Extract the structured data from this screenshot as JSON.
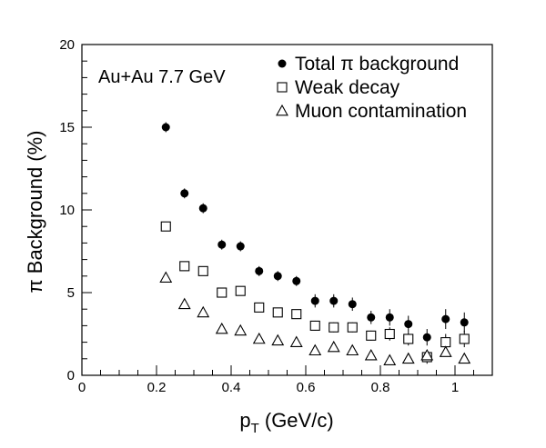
{
  "chart_data": {
    "type": "scatter",
    "annotation": "Au+Au 7.7 GeV",
    "xlabel": {
      "main": "p",
      "sub": "T",
      "rest": " (GeV/c)"
    },
    "ylabel": "π Background (%)",
    "xlim": [
      0,
      1.1
    ],
    "ylim": [
      0,
      20
    ],
    "x_ticks": [
      0,
      0.2,
      0.4,
      0.6,
      0.8,
      1
    ],
    "x_tick_labels": [
      "0",
      "0.2",
      "0.4",
      "0.6",
      "0.8",
      "1"
    ],
    "y_ticks": [
      0,
      5,
      10,
      15,
      20
    ],
    "y_tick_labels": [
      "0",
      "5",
      "10",
      "15",
      "20"
    ],
    "grid": false,
    "legend_position": "top-right",
    "series": [
      {
        "name": "Total π background",
        "marker": "filled-circle",
        "color": "#000000",
        "x": [
          0.225,
          0.275,
          0.325,
          0.375,
          0.425,
          0.475,
          0.525,
          0.575,
          0.625,
          0.675,
          0.725,
          0.775,
          0.825,
          0.875,
          0.925,
          0.975,
          1.025
        ],
        "y": [
          15.0,
          11.0,
          10.1,
          7.9,
          7.8,
          6.3,
          6.0,
          5.7,
          4.5,
          4.5,
          4.3,
          3.5,
          3.5,
          3.1,
          2.3,
          3.4,
          3.2
        ],
        "err": [
          0.3,
          0.3,
          0.3,
          0.3,
          0.3,
          0.3,
          0.3,
          0.3,
          0.4,
          0.4,
          0.4,
          0.4,
          0.5,
          0.5,
          0.5,
          0.6,
          0.6
        ]
      },
      {
        "name": "Weak decay",
        "marker": "open-square",
        "color": "#000000",
        "x": [
          0.225,
          0.275,
          0.325,
          0.375,
          0.425,
          0.475,
          0.525,
          0.575,
          0.625,
          0.675,
          0.725,
          0.775,
          0.825,
          0.875,
          0.925,
          0.975,
          1.025
        ],
        "y": [
          9.0,
          6.6,
          6.3,
          5.0,
          5.1,
          4.1,
          3.8,
          3.7,
          3.0,
          2.9,
          2.9,
          2.4,
          2.5,
          2.2,
          1.1,
          2.0,
          2.2
        ],
        "err": [
          0.2,
          0.2,
          0.2,
          0.2,
          0.2,
          0.2,
          0.2,
          0.2,
          0.3,
          0.3,
          0.3,
          0.3,
          0.4,
          0.4,
          0.4,
          0.5,
          0.5
        ]
      },
      {
        "name": "Muon contamination",
        "marker": "open-triangle",
        "color": "#000000",
        "x": [
          0.225,
          0.275,
          0.325,
          0.375,
          0.425,
          0.475,
          0.525,
          0.575,
          0.625,
          0.675,
          0.725,
          0.775,
          0.825,
          0.875,
          0.925,
          0.975,
          1.025
        ],
        "y": [
          5.9,
          4.3,
          3.8,
          2.8,
          2.7,
          2.2,
          2.1,
          2.0,
          1.5,
          1.7,
          1.5,
          1.2,
          0.9,
          1.0,
          1.2,
          1.4,
          1.0
        ]
      }
    ]
  }
}
